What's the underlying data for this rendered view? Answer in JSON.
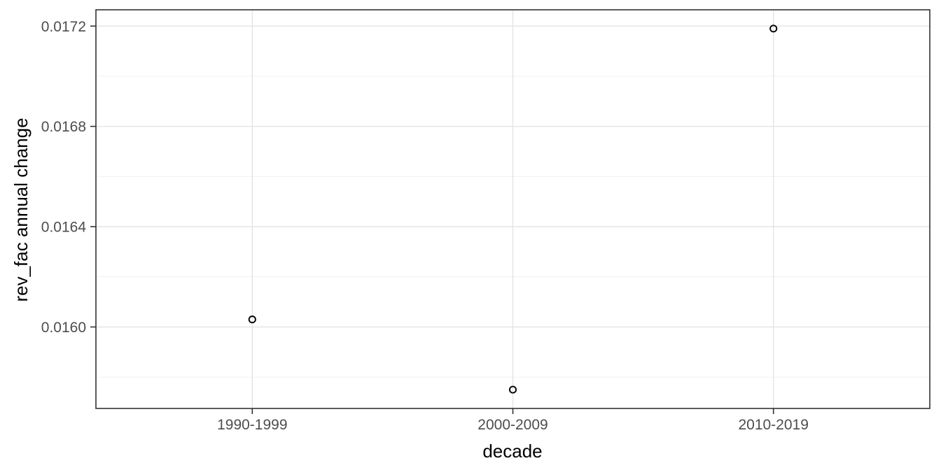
{
  "chart_data": {
    "type": "scatter",
    "title": "",
    "xlabel": "decade",
    "ylabel": "rev_fac annual change",
    "categories": [
      "1990-1999",
      "2000-2009",
      "2010-2019"
    ],
    "values": [
      0.01603,
      0.01575,
      0.01719
    ],
    "yticks": [
      0.016,
      0.0164,
      0.0168,
      0.0172
    ],
    "yticks_minor": [
      0.0158,
      0.0162,
      0.0166,
      0.017
    ],
    "ytick_labels": [
      "0.0160",
      "0.0164",
      "0.0168",
      "0.0172"
    ],
    "ylim": [
      0.015675,
      0.017265
    ],
    "grid": "major and minor horizontal, major vertical at categories",
    "legend": "none",
    "marker": "open-circle",
    "colors": {
      "background": "#ffffff",
      "grid_major": "#e4e4e4",
      "grid_minor": "#f0f0f0",
      "panel_border": "#333333",
      "tick_mark": "#333333",
      "axis_text": "#4d4d4d",
      "axis_title": "#000000",
      "point_stroke": "#000000"
    }
  }
}
